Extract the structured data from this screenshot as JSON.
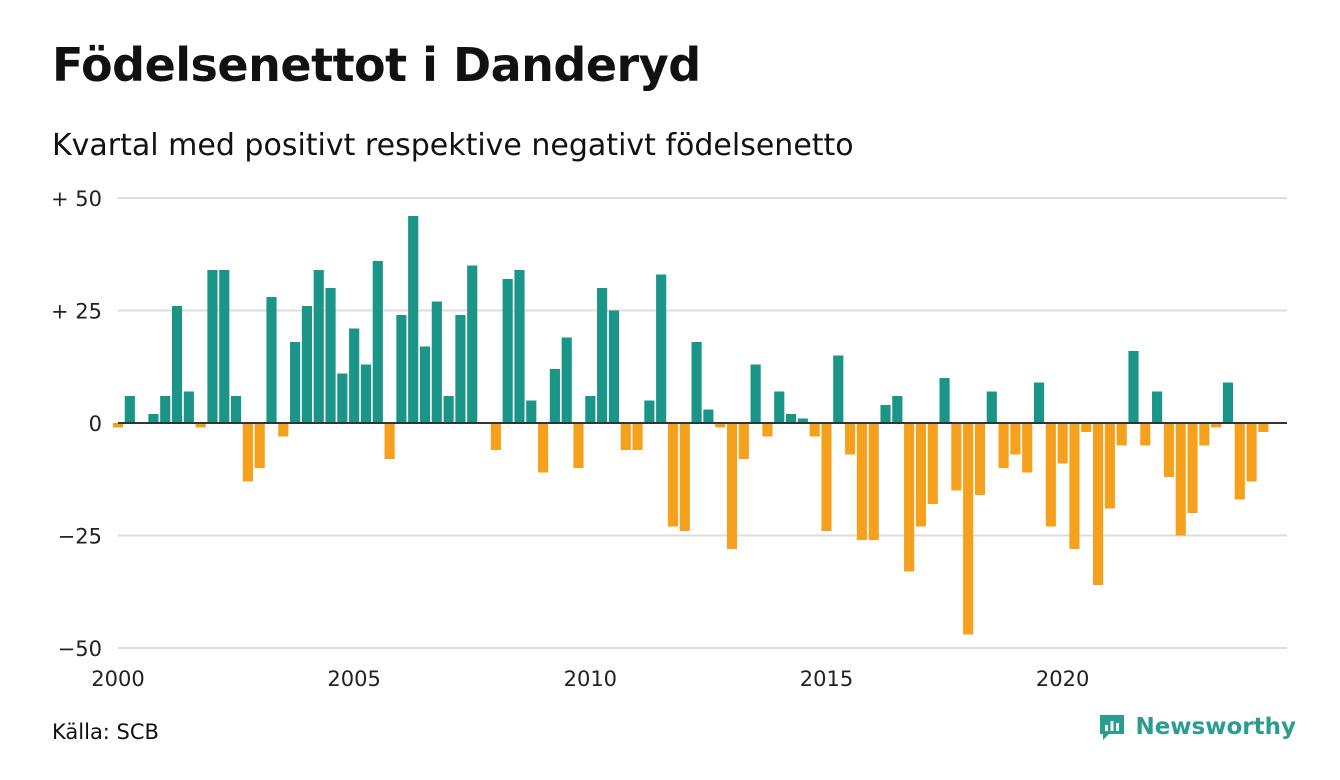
{
  "header": {
    "title": "Födelsenettot i Danderyd",
    "subtitle": "Kvartal med positivt respektive negativt födelsenetto"
  },
  "footer": {
    "source": "Källa: SCB",
    "brand": "Newsworthy",
    "brand_icon": "newsworthy-logo-icon"
  },
  "colors": {
    "positive": "#1a9587",
    "negative": "#f5a11d",
    "grid": "#dddddd",
    "zero_line": "#333333",
    "brand": "#2a9d8f"
  },
  "chart_data": {
    "type": "bar",
    "title": "Födelsenettot i Danderyd",
    "subtitle": "Kvartal med positivt respektive negativt födelsenetto",
    "xlabel": "",
    "ylabel": "",
    "x_start_year": 2000,
    "periods_per_year": 4,
    "xlim": [
      2000,
      2024.75
    ],
    "ylim": [
      -50,
      50
    ],
    "yticks": [
      50,
      25,
      0,
      -25,
      -50
    ],
    "ytick_labels": [
      "+ 50",
      "+ 25",
      "0",
      "−25",
      "−50"
    ],
    "xticks": [
      2000,
      2005,
      2010,
      2015,
      2020
    ],
    "xtick_labels": [
      "2000",
      "2005",
      "2010",
      "2015",
      "2020"
    ],
    "grid": true,
    "legend": "none",
    "values": [
      -1,
      6,
      0,
      2,
      6,
      26,
      7,
      -1,
      34,
      34,
      6,
      -13,
      -10,
      28,
      -3,
      18,
      26,
      34,
      30,
      11,
      21,
      13,
      36,
      -8,
      24,
      46,
      17,
      27,
      6,
      24,
      35,
      0,
      -6,
      32,
      34,
      5,
      -11,
      12,
      19,
      -10,
      6,
      30,
      25,
      -6,
      -6,
      5,
      33,
      -23,
      -24,
      18,
      3,
      -1,
      -28,
      -8,
      13,
      -3,
      7,
      2,
      1,
      -3,
      -24,
      15,
      -7,
      -26,
      -26,
      4,
      6,
      -33,
      -23,
      -18,
      10,
      -15,
      -47,
      -16,
      7,
      -10,
      -7,
      -11,
      9,
      -23,
      -9,
      -28,
      -2,
      -36,
      -19,
      -5,
      16,
      -5,
      7,
      -12,
      -25,
      -20,
      -5,
      -1,
      9,
      -17,
      -13,
      -2
    ]
  }
}
